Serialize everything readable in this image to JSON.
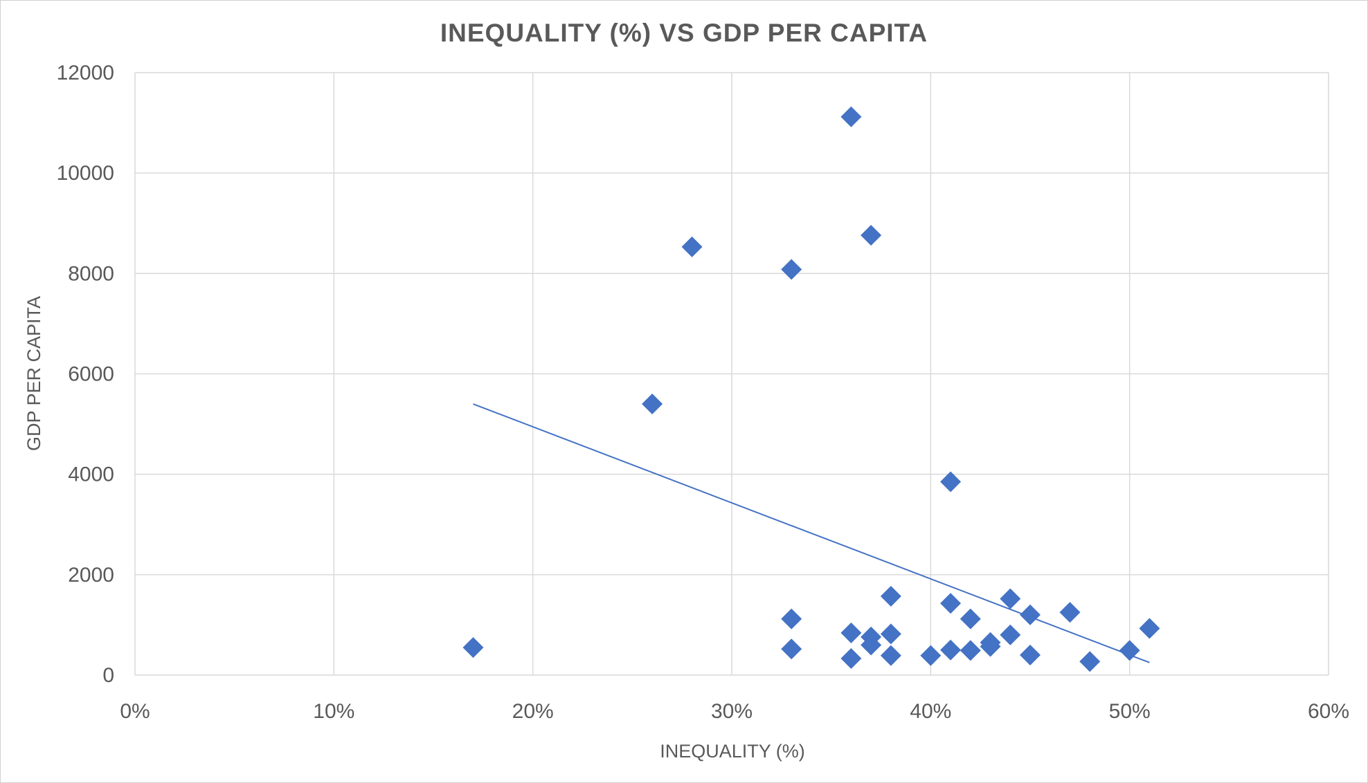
{
  "chart_data": {
    "type": "scatter",
    "title": "INEQUALITY (%) VS GDP PER CAPITA",
    "xlabel": "INEQUALITY (%)",
    "ylabel": "GDP PER CAPITA",
    "xlim": [
      0,
      60
    ],
    "ylim": [
      0,
      12000
    ],
    "x_ticks": [
      "0%",
      "10%",
      "20%",
      "30%",
      "40%",
      "50%",
      "60%"
    ],
    "x_tick_values": [
      0,
      10,
      20,
      30,
      40,
      50,
      60
    ],
    "y_ticks": [
      "0",
      "2000",
      "4000",
      "6000",
      "8000",
      "10000",
      "12000"
    ],
    "y_tick_values": [
      0,
      2000,
      4000,
      6000,
      8000,
      10000,
      12000
    ],
    "grid": true,
    "legend": "none",
    "marker": "diamond",
    "marker_color": "#4472c4",
    "series": [
      {
        "x": [
          17,
          26,
          28,
          33,
          33,
          33,
          36,
          36,
          36,
          37,
          37,
          37,
          38,
          38,
          38,
          40,
          41,
          41,
          41,
          42,
          42,
          43,
          43,
          44,
          44,
          45,
          45,
          47,
          48,
          50,
          51
        ],
        "y": [
          550,
          5400,
          8530,
          8080,
          1120,
          520,
          11120,
          840,
          330,
          8760,
          760,
          600,
          1570,
          820,
          390,
          390,
          3850,
          1430,
          500,
          1120,
          490,
          570,
          650,
          1520,
          800,
          1200,
          400,
          1250,
          270,
          490,
          930
        ]
      }
    ],
    "trendline": {
      "type": "linear",
      "color": "#4472c4",
      "x_range": [
        17,
        51
      ],
      "y_range": [
        5400,
        250
      ]
    }
  }
}
